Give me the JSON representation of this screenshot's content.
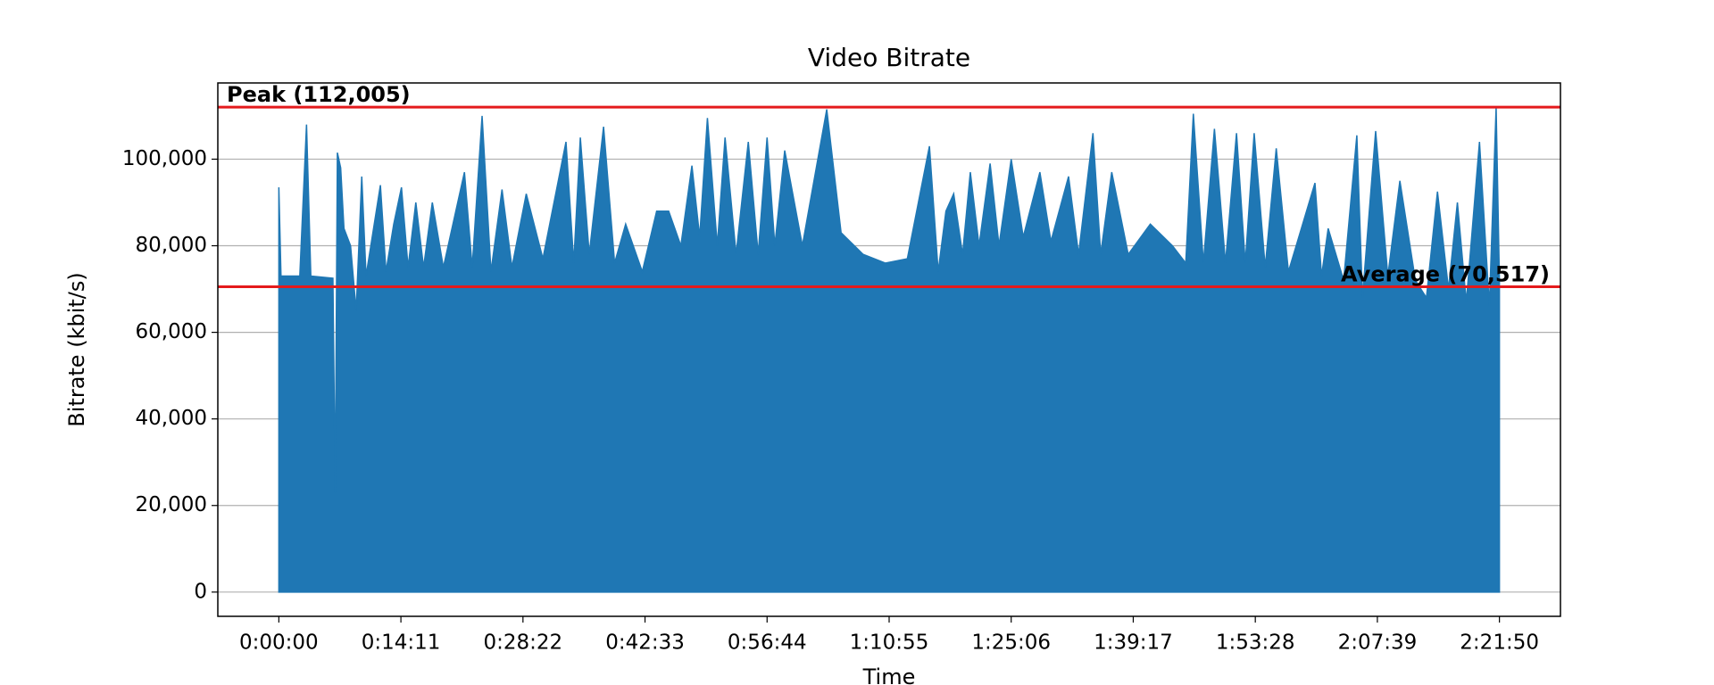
{
  "chart_data": {
    "type": "area",
    "title": "Video Bitrate",
    "x_label": "Time",
    "y_label": "Bitrate (kbit/s)",
    "x": [
      0,
      15,
      146,
      193,
      223,
      377,
      393,
      408,
      431,
      454,
      500,
      539,
      578,
      608,
      708,
      747,
      801,
      855,
      901,
      955,
      1009,
      1070,
      1147,
      1294,
      1348,
      1417,
      1479,
      1556,
      1625,
      1725,
      1841,
      2002,
      2056,
      2102,
      2164,
      2264,
      2341,
      2418,
      2534,
      2634,
      2718,
      2803,
      2880,
      2934,
      2988,
      3057,
      3111,
      3188,
      3273,
      3342,
      3404,
      3458,
      3527,
      3650,
      3820,
      3920,
      4074,
      4228,
      4382,
      4536,
      4597,
      4651,
      4705,
      4767,
      4821,
      4882,
      4959,
      5021,
      5106,
      5190,
      5306,
      5383,
      5506,
      5576,
      5676,
      5730,
      5807,
      5922,
      6076,
      6230,
      6323,
      6376,
      6446,
      6523,
      6600,
      6677,
      6738,
      6800,
      6877,
      6954,
      7039,
      7224,
      7270,
      7316,
      7424,
      7516,
      7555,
      7647,
      7732,
      7816,
      7924,
      8001,
      8078,
      8155,
      8217,
      8279,
      8371,
      8440,
      8487,
      8510
    ],
    "series": [
      {
        "name": "Bitrate",
        "color": "#1f77b4",
        "values": [
          93500,
          73000,
          73000,
          108000,
          73000,
          72500,
          23000,
          101500,
          98000,
          84000,
          80000,
          65000,
          96000,
          73000,
          94000,
          74000,
          85000,
          93500,
          75000,
          90000,
          75000,
          90000,
          75000,
          97000,
          75000,
          110000,
          74000,
          93000,
          75000,
          92000,
          77000,
          104000,
          76000,
          105000,
          78000,
          107500,
          76000,
          85000,
          74000,
          88000,
          88000,
          80000,
          98500,
          82000,
          109500,
          80000,
          105000,
          78000,
          104000,
          78000,
          105000,
          80000,
          102000,
          80000,
          111500,
          83000,
          78000,
          76000,
          77000,
          103000,
          74000,
          88000,
          92000,
          78000,
          97000,
          80000,
          99000,
          80000,
          100000,
          82000,
          97000,
          81000,
          96000,
          78000,
          106000,
          78000,
          97000,
          78000,
          85000,
          80000,
          76000,
          110500,
          76000,
          107000,
          76000,
          106000,
          76000,
          106000,
          75000,
          102500,
          74000,
          94500,
          73000,
          84000,
          72000,
          105500,
          68000,
          106500,
          73000,
          95000,
          72000,
          68000,
          92500,
          70000,
          90000,
          67000,
          104000,
          66000,
          112005,
          72000
        ]
      }
    ],
    "hlines": [
      {
        "value": 112005,
        "label": "Peak (112,005)",
        "color": "#e41a1c"
      },
      {
        "value": 70517,
        "label": "Average (70,517)",
        "color": "#e41a1c"
      }
    ],
    "xlim": [
      -425.5,
      8935.5
    ],
    "ylim": [
      -5600,
      117605
    ],
    "xticks": [
      {
        "value": 0,
        "label": "0:00:00"
      },
      {
        "value": 851,
        "label": "0:14:11"
      },
      {
        "value": 1702,
        "label": "0:28:22"
      },
      {
        "value": 2553,
        "label": "0:42:33"
      },
      {
        "value": 3404,
        "label": "0:56:44"
      },
      {
        "value": 4255,
        "label": "1:10:55"
      },
      {
        "value": 5106,
        "label": "1:25:06"
      },
      {
        "value": 5957,
        "label": "1:39:17"
      },
      {
        "value": 6808,
        "label": "1:53:28"
      },
      {
        "value": 7659,
        "label": "2:07:39"
      },
      {
        "value": 8510,
        "label": "2:21:50"
      }
    ],
    "yticks": [
      0,
      {
        "value": 20000,
        "label": "20,000"
      },
      {
        "value": 40000,
        "label": "40,000"
      },
      {
        "value": 60000,
        "label": "60,000"
      },
      {
        "value": 80000,
        "label": "80,000"
      },
      {
        "value": 100000,
        "label": "100,000"
      }
    ],
    "grid": "y"
  }
}
